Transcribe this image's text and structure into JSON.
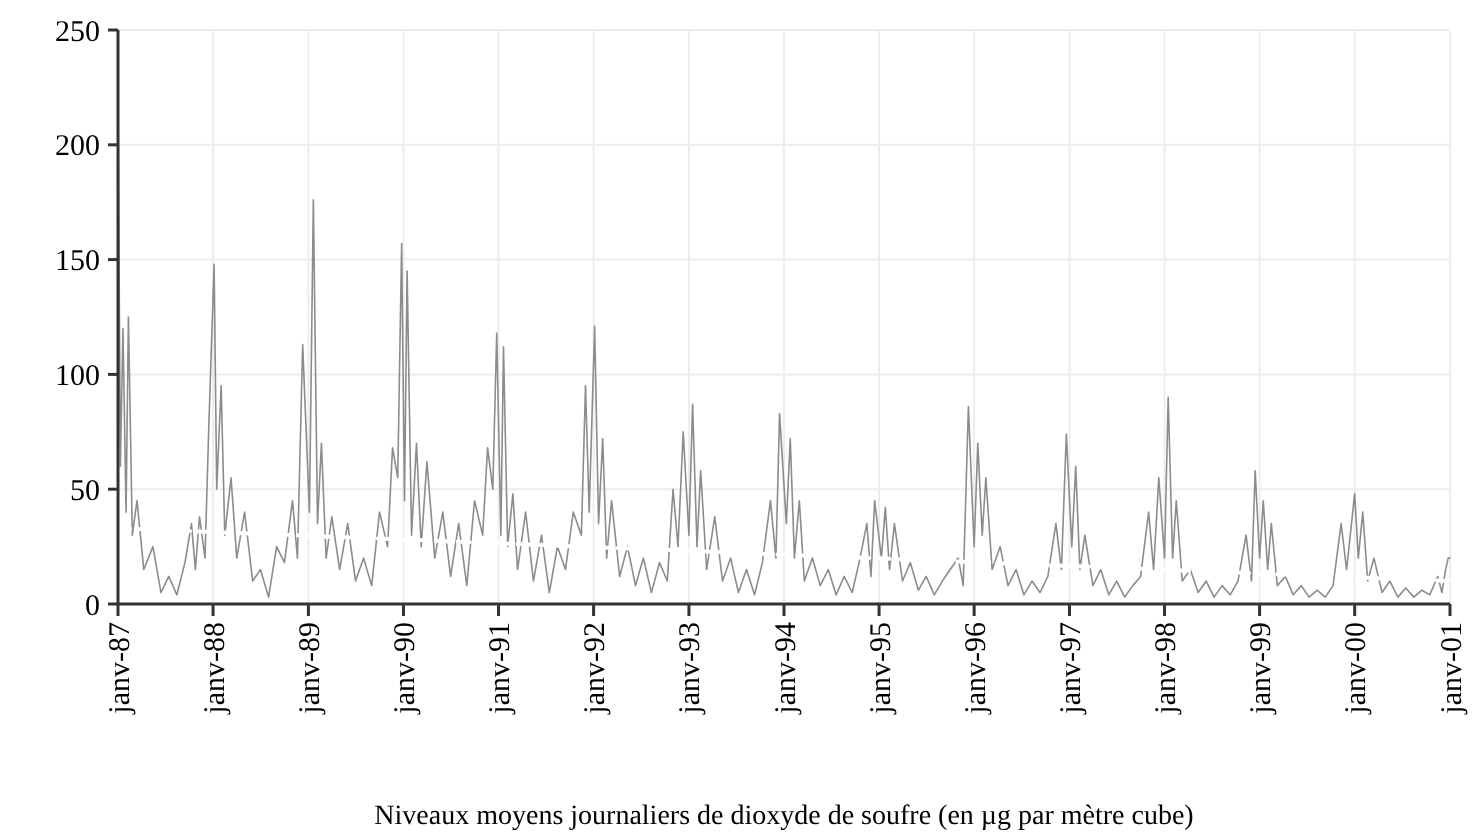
{
  "chart_data": {
    "type": "line",
    "xlabel": "Niveaux moyens journaliers de dioxyde de soufre (en µg par mètre cube)",
    "xlim": [
      "1987-01-01",
      "2001-01-01"
    ],
    "xticks": [
      {
        "value": "1987-01-01",
        "label": "janv-87"
      },
      {
        "value": "1988-01-01",
        "label": "janv-88"
      },
      {
        "value": "1989-01-01",
        "label": "janv-89"
      },
      {
        "value": "1990-01-01",
        "label": "janv-90"
      },
      {
        "value": "1991-01-01",
        "label": "janv-91"
      },
      {
        "value": "1992-01-01",
        "label": "janv-92"
      },
      {
        "value": "1993-01-01",
        "label": "janv-93"
      },
      {
        "value": "1994-01-01",
        "label": "janv-94"
      },
      {
        "value": "1995-01-01",
        "label": "janv-95"
      },
      {
        "value": "1996-01-01",
        "label": "janv-96"
      },
      {
        "value": "1997-01-01",
        "label": "janv-97"
      },
      {
        "value": "1998-01-01",
        "label": "janv-98"
      },
      {
        "value": "1999-01-01",
        "label": "janv-99"
      },
      {
        "value": "2000-01-01",
        "label": "janv-00"
      },
      {
        "value": "2001-01-01",
        "label": "janv-01"
      }
    ],
    "ylim": [
      0,
      250
    ],
    "yticks": [
      0,
      50,
      100,
      150,
      200,
      250
    ],
    "grid": true,
    "line_style": "solid",
    "marker": "none",
    "series": [
      {
        "color": "#8c8c8c",
        "x": [
          "1987-01-02",
          "1987-01-10",
          "1987-01-20",
          "1987-02-01",
          "1987-02-10",
          "1987-02-25",
          "1987-03-15",
          "1987-04-10",
          "1987-05-15",
          "1987-06-15",
          "1987-07-15",
          "1987-08-15",
          "1987-09-15",
          "1987-10-10",
          "1987-10-25",
          "1987-11-10",
          "1987-12-01",
          "1987-12-15",
          "1988-01-05",
          "1988-01-15",
          "1988-02-01",
          "1988-02-15",
          "1988-03-10",
          "1988-04-01",
          "1988-05-01",
          "1988-06-01",
          "1988-07-01",
          "1988-08-01",
          "1988-09-01",
          "1988-10-01",
          "1988-11-01",
          "1988-11-20",
          "1988-12-10",
          "1989-01-05",
          "1989-01-20",
          "1989-02-05",
          "1989-02-20",
          "1989-03-10",
          "1989-04-01",
          "1989-05-01",
          "1989-06-01",
          "1989-07-01",
          "1989-08-01",
          "1989-09-01",
          "1989-10-01",
          "1989-11-01",
          "1989-11-20",
          "1989-12-10",
          "1989-12-25",
          "1990-01-05",
          "1990-01-15",
          "1990-02-01",
          "1990-02-20",
          "1990-03-10",
          "1990-04-01",
          "1990-05-01",
          "1990-06-01",
          "1990-07-01",
          "1990-08-01",
          "1990-09-01",
          "1990-10-01",
          "1990-11-01",
          "1990-11-20",
          "1990-12-10",
          "1990-12-25",
          "1991-01-10",
          "1991-01-20",
          "1991-02-05",
          "1991-02-25",
          "1991-03-15",
          "1991-04-15",
          "1991-05-15",
          "1991-06-15",
          "1991-07-15",
          "1991-08-15",
          "1991-09-15",
          "1991-10-15",
          "1991-11-15",
          "1991-12-01",
          "1991-12-15",
          "1992-01-05",
          "1992-01-20",
          "1992-02-05",
          "1992-02-20",
          "1992-03-10",
          "1992-04-10",
          "1992-05-10",
          "1992-06-10",
          "1992-07-10",
          "1992-08-10",
          "1992-09-10",
          "1992-10-10",
          "1992-11-01",
          "1992-11-20",
          "1992-12-10",
          "1993-01-01",
          "1993-01-15",
          "1993-02-01",
          "1993-02-15",
          "1993-03-10",
          "1993-04-10",
          "1993-05-10",
          "1993-06-10",
          "1993-07-10",
          "1993-08-10",
          "1993-09-10",
          "1993-10-10",
          "1993-11-10",
          "1993-12-01",
          "1993-12-15",
          "1994-01-10",
          "1994-01-25",
          "1994-02-10",
          "1994-03-01",
          "1994-03-20",
          "1994-04-20",
          "1994-05-20",
          "1994-06-20",
          "1994-07-20",
          "1994-08-20",
          "1994-09-20",
          "1994-10-20",
          "1994-11-15",
          "1994-12-01",
          "1994-12-15",
          "1995-01-10",
          "1995-01-25",
          "1995-02-10",
          "1995-03-01",
          "1995-04-01",
          "1995-05-01",
          "1995-06-01",
          "1995-07-01",
          "1995-08-01",
          "1995-09-01",
          "1995-10-01",
          "1995-11-01",
          "1995-11-20",
          "1995-12-10",
          "1996-01-01",
          "1996-01-15",
          "1996-02-01",
          "1996-02-15",
          "1996-03-10",
          "1996-04-10",
          "1996-05-10",
          "1996-06-10",
          "1996-07-10",
          "1996-08-10",
          "1996-09-10",
          "1996-10-10",
          "1996-11-10",
          "1996-12-01",
          "1996-12-20",
          "1997-01-10",
          "1997-01-25",
          "1997-02-10",
          "1997-03-01",
          "1997-04-01",
          "1997-05-01",
          "1997-06-01",
          "1997-07-01",
          "1997-08-01",
          "1997-09-01",
          "1997-10-01",
          "1997-11-01",
          "1997-11-20",
          "1997-12-10",
          "1998-01-01",
          "1998-01-15",
          "1998-02-01",
          "1998-02-15",
          "1998-03-10",
          "1998-04-10",
          "1998-05-10",
          "1998-06-10",
          "1998-07-10",
          "1998-08-10",
          "1998-09-10",
          "1998-10-10",
          "1998-11-10",
          "1998-12-01",
          "1998-12-15",
          "1999-01-01",
          "1999-01-15",
          "1999-02-01",
          "1999-02-15",
          "1999-03-10",
          "1999-04-10",
          "1999-05-10",
          "1999-06-10",
          "1999-07-10",
          "1999-08-10",
          "1999-09-10",
          "1999-10-10",
          "1999-11-10",
          "1999-12-01",
          "2000-01-01",
          "2000-01-15",
          "2000-02-01",
          "2000-02-20",
          "2000-03-15",
          "2000-04-15",
          "2000-05-15",
          "2000-06-15",
          "2000-07-15",
          "2000-08-15",
          "2000-09-15",
          "2000-10-15",
          "2000-11-15",
          "2000-12-01",
          "2000-12-15",
          "2000-12-25",
          "2001-01-01"
        ],
        "values": [
          205,
          60,
          120,
          40,
          125,
          30,
          45,
          15,
          25,
          5,
          12,
          4,
          18,
          35,
          15,
          38,
          20,
          75,
          148,
          50,
          95,
          30,
          55,
          20,
          40,
          10,
          15,
          3,
          25,
          18,
          45,
          20,
          113,
          40,
          176,
          35,
          70,
          20,
          38,
          15,
          35,
          10,
          20,
          8,
          40,
          25,
          68,
          55,
          157,
          45,
          145,
          30,
          70,
          25,
          62,
          20,
          40,
          12,
          35,
          8,
          45,
          30,
          68,
          50,
          118,
          30,
          112,
          25,
          48,
          15,
          40,
          10,
          30,
          5,
          25,
          15,
          40,
          30,
          95,
          40,
          121,
          35,
          72,
          20,
          45,
          12,
          25,
          8,
          20,
          5,
          18,
          10,
          50,
          25,
          75,
          30,
          87,
          25,
          58,
          15,
          38,
          10,
          20,
          5,
          15,
          4,
          18,
          45,
          20,
          83,
          35,
          72,
          20,
          45,
          10,
          20,
          8,
          15,
          4,
          12,
          5,
          20,
          35,
          12,
          45,
          20,
          42,
          15,
          35,
          10,
          18,
          6,
          12,
          4,
          10,
          15,
          20,
          8,
          86,
          25,
          70,
          30,
          55,
          15,
          25,
          8,
          15,
          4,
          10,
          5,
          12,
          35,
          15,
          74,
          25,
          60,
          15,
          30,
          8,
          15,
          4,
          10,
          3,
          8,
          12,
          40,
          15,
          55,
          20,
          90,
          20,
          45,
          10,
          15,
          5,
          10,
          3,
          8,
          4,
          10,
          30,
          10,
          58,
          20,
          45,
          15,
          35,
          8,
          12,
          4,
          8,
          3,
          6,
          3,
          8,
          35,
          15,
          48,
          20,
          40,
          10,
          20,
          5,
          10,
          3,
          7,
          3,
          6,
          4,
          12,
          5,
          15,
          20,
          20
        ]
      },
      {
        "color": "#ffffff",
        "line_style": "dashed",
        "x": [
          "1987-01-01",
          "2001-01-01"
        ],
        "values": [
          33,
          10
        ]
      }
    ]
  }
}
